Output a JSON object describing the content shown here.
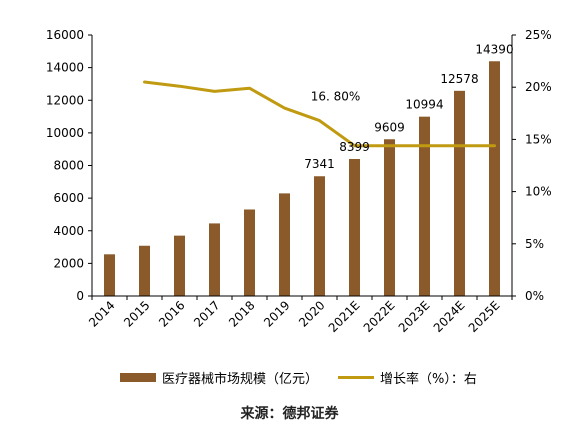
{
  "chart_data": {
    "type": "bar",
    "categories": [
      "2014",
      "2015",
      "2016",
      "2017",
      "2018",
      "2019",
      "2020",
      "2021E",
      "2022E",
      "2023E",
      "2024E",
      "2025E"
    ],
    "series": [
      {
        "name": "医疗器械市场规模（亿元）",
        "type": "bar",
        "axis": "left",
        "values": [
          2556,
          3080,
          3700,
          4450,
          5304,
          6290,
          7341,
          8399,
          9609,
          10994,
          12578,
          14390
        ],
        "labels": {
          "2020": "7341",
          "2021E": "8399",
          "2022E": "9609",
          "2023E": "10994",
          "2024E": "12578",
          "2025E": "14390"
        }
      },
      {
        "name": "增长率（%）：右",
        "type": "line",
        "axis": "right",
        "values": [
          null,
          20.5,
          20.1,
          19.6,
          19.9,
          18.0,
          16.8,
          14.4,
          14.4,
          14.4,
          14.4,
          14.4
        ],
        "labels": {
          "2020": "16. 80%"
        }
      }
    ],
    "ylim_left": [
      0,
      16000
    ],
    "yticks_left": [
      "0",
      "2000",
      "4000",
      "6000",
      "8000",
      "10000",
      "12000",
      "14000",
      "16000"
    ],
    "ylim_right": [
      0,
      25
    ],
    "yticks_right": [
      "0%",
      "5%",
      "10%",
      "15%",
      "20%",
      "25%"
    ],
    "grid": false,
    "legend_position": "bottom",
    "colors": {
      "bar": "#8b5a2b",
      "line": "#c09a10",
      "axis": "#000000"
    }
  },
  "legend": {
    "bar_label": "医疗器械市场规模（亿元）",
    "line_label": "增长率（%）：右"
  },
  "source": "来源：德邦证券"
}
